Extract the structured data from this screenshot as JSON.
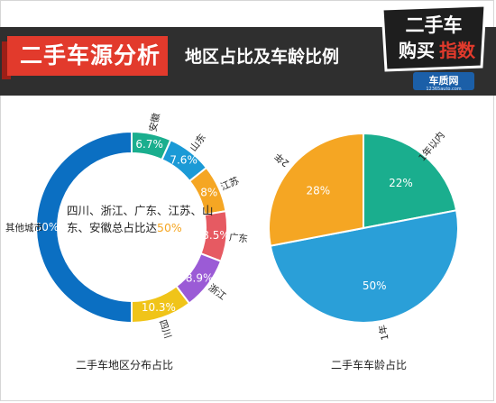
{
  "header": {
    "main_title": "二手车源分析",
    "sub_title": "地区占比及车龄比例",
    "logo_line1": "二手车",
    "logo_line2_a": "购买",
    "logo_line2_b": "指数",
    "logo_brand": "车质网",
    "logo_url": "12365auto.com"
  },
  "chart_data": [
    {
      "type": "pie",
      "variant": "donut",
      "title": "二手车地区分布占比",
      "categories": [
        "安徽",
        "山东",
        "江苏",
        "广东",
        "浙江",
        "四川",
        "其他城市"
      ],
      "values": [
        6.7,
        7.6,
        8,
        8.5,
        8.9,
        10.3,
        50
      ],
      "value_labels": [
        "6.7%",
        "7.6%",
        "8%",
        "8.5%",
        "8.9%",
        "10.3%",
        "50%"
      ],
      "colors": [
        "#1aae8e",
        "#1b9ad6",
        "#f5a623",
        "#e65a62",
        "#9b5bd6",
        "#f0c419",
        "#0b6fc2"
      ],
      "center_text_main": "四川、浙江、广东、江苏、山东、安徽总占比达",
      "center_text_value": "50%"
    },
    {
      "type": "pie",
      "title": "二手车车龄占比",
      "categories": [
        "1年以内",
        "1年",
        "2年"
      ],
      "values": [
        22,
        50,
        28
      ],
      "value_labels": [
        "22%",
        "50%",
        "28%"
      ],
      "colors": [
        "#1aae8e",
        "#2a9fd8",
        "#f5a623"
      ]
    }
  ]
}
